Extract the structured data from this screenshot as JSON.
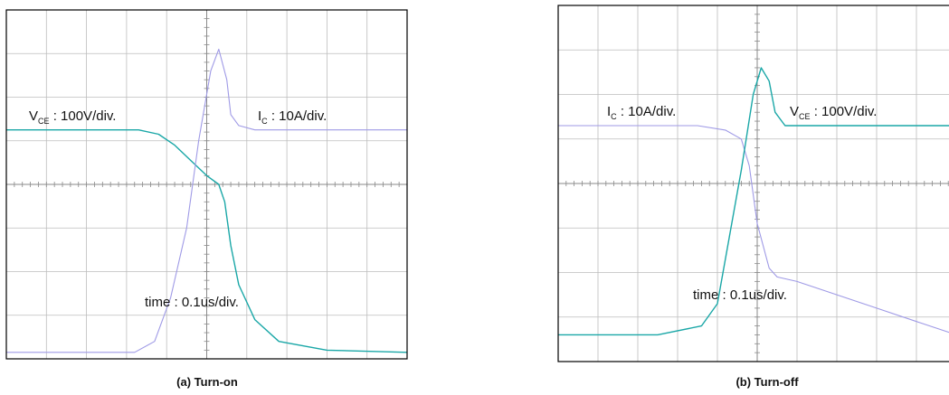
{
  "chart_data": [
    {
      "type": "line",
      "caption": "(a) Turn-on",
      "x_divisions": 10,
      "y_divisions": 8,
      "annotations": {
        "vce": {
          "main": "V",
          "sub": "CE",
          "rest": " : 100V/div."
        },
        "ic": {
          "main": "I",
          "sub": "C",
          "rest": " : 10A/div."
        },
        "time": "time : 0.1us/div."
      },
      "series": [
        {
          "name": "VCE",
          "color": "#1aa7a7",
          "x": [
            0,
            3.3,
            3.8,
            4.2,
            4.6,
            5.0,
            5.3,
            5.45,
            5.6,
            5.8,
            6.2,
            6.8,
            8.0,
            10.0
          ],
          "y": [
            5.25,
            5.25,
            5.15,
            4.9,
            4.55,
            4.2,
            4.0,
            3.6,
            2.6,
            1.7,
            0.9,
            0.4,
            0.2,
            0.15
          ]
        },
        {
          "name": "IC",
          "color": "#9f9ae6",
          "x": [
            0,
            3.2,
            3.7,
            4.1,
            4.5,
            4.8,
            5.1,
            5.3,
            5.5,
            5.6,
            5.8,
            6.2,
            8.0,
            10.0
          ],
          "y": [
            0.15,
            0.15,
            0.4,
            1.4,
            3.0,
            5.0,
            6.6,
            7.1,
            6.4,
            5.6,
            5.35,
            5.25,
            5.25,
            5.25
          ]
        }
      ]
    },
    {
      "type": "line",
      "caption": "(b) Turn-off",
      "x_divisions": 10,
      "y_divisions": 8,
      "annotations": {
        "ic": {
          "main": "I",
          "sub": "C",
          "rest": " : 10A/div."
        },
        "vce": {
          "main": "V",
          "sub": "CE",
          "rest": " : 100V/div."
        },
        "time": "time : 0.1us/div."
      },
      "series": [
        {
          "name": "IC",
          "color": "#9f9ae6",
          "x": [
            0,
            3.5,
            4.2,
            4.6,
            4.8,
            5.0,
            5.3,
            5.5,
            6.0,
            7.0,
            8.0,
            9.0,
            10.0
          ],
          "y": [
            5.3,
            5.3,
            5.2,
            5.0,
            4.4,
            3.1,
            2.1,
            1.9,
            1.8,
            1.5,
            1.2,
            0.9,
            0.6
          ]
        },
        {
          "name": "VCE",
          "color": "#1aa7a7",
          "x": [
            0,
            2.5,
            3.6,
            4.0,
            4.3,
            4.6,
            4.9,
            5.1,
            5.3,
            5.45,
            5.7,
            6.0,
            10.0
          ],
          "y": [
            0.6,
            0.6,
            0.8,
            1.3,
            2.8,
            4.3,
            6.0,
            6.6,
            6.3,
            5.6,
            5.3,
            5.3,
            5.3
          ]
        }
      ]
    }
  ]
}
